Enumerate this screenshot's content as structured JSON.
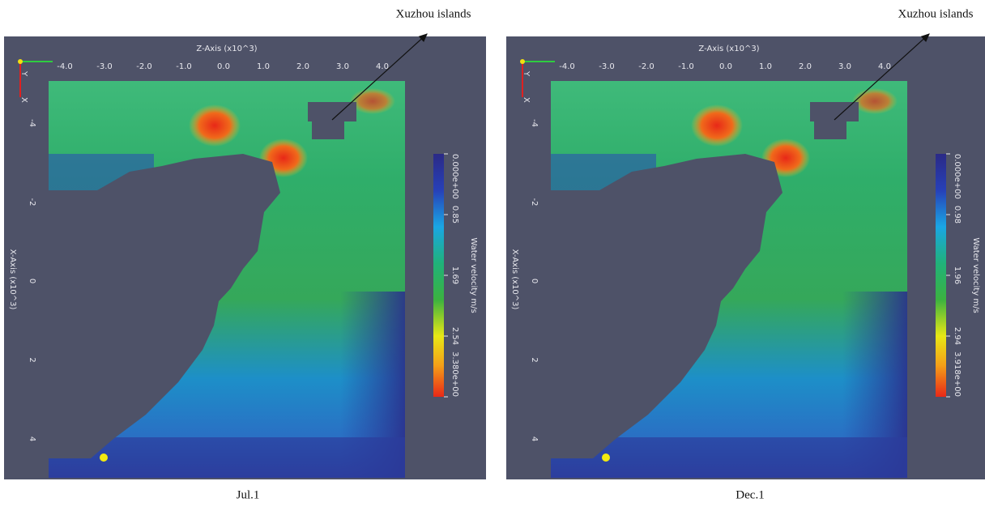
{
  "panels": [
    {
      "caption": "Jul.1",
      "annotation": "Xuzhou islands",
      "z_axis": {
        "title": "Z-Axis (x10^3)",
        "ticks": [
          "-4.0",
          "-3.0",
          "-2.0",
          "-1.0",
          "0.0",
          "1.0",
          "2.0",
          "3.0",
          "4.0"
        ]
      },
      "x_axis": {
        "title": "X-Axis (x10^3)",
        "ticks": [
          "-4",
          "-2",
          "0",
          "2",
          "4"
        ]
      },
      "colorbar": {
        "title": "Water velocity m/s",
        "labels": [
          "0.000e+00",
          "0.85",
          "1.69",
          "2.54",
          "3.380e+00"
        ]
      },
      "gizmo": [
        "Y",
        "X"
      ]
    },
    {
      "caption": "Dec.1",
      "annotation": "Xuzhou islands",
      "z_axis": {
        "title": "Z-Axis (x10^3)",
        "ticks": [
          "-4.0",
          "-3.0",
          "-2.0",
          "-1.0",
          "0.0",
          "1.0",
          "2.0",
          "3.0",
          "4.0"
        ]
      },
      "x_axis": {
        "title": "X-Axis (x10^3)",
        "ticks": [
          "-4",
          "-2",
          "0",
          "2",
          "4"
        ]
      },
      "colorbar": {
        "title": "Water velocity m/s",
        "labels": [
          "0.000e+00",
          "0.98",
          "1.96",
          "2.94",
          "3.918e+00"
        ]
      },
      "gizmo": [
        "Y",
        "X"
      ]
    }
  ]
}
